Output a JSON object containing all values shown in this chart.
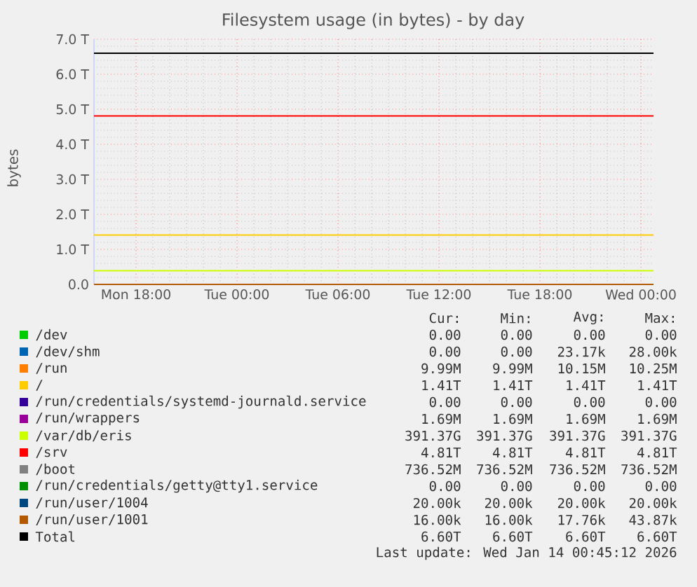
{
  "chart_data": {
    "type": "line",
    "title": "Filesystem usage (in bytes) - by day",
    "ylabel": "bytes",
    "x": [
      "2026-01-12T15:30",
      "2026-01-14T00:45"
    ],
    "xlim": [
      "2026-01-12T15:30",
      "2026-01-14T00:45"
    ],
    "ylim": [
      0,
      7
    ],
    "xticks": [
      {
        "value": "2026-01-12T18:00",
        "label": "Mon 18:00"
      },
      {
        "value": "2026-01-13T00:00",
        "label": "Tue 00:00"
      },
      {
        "value": "2026-01-13T06:00",
        "label": "Tue 06:00"
      },
      {
        "value": "2026-01-13T12:00",
        "label": "Tue 12:00"
      },
      {
        "value": "2026-01-13T18:00",
        "label": "Tue 18:00"
      },
      {
        "value": "2026-01-14T00:00",
        "label": "Wed 00:00"
      }
    ],
    "yticks": [
      {
        "value": 0,
        "label": "0.0"
      },
      {
        "value": 1,
        "label": "1.0 T"
      },
      {
        "value": 2,
        "label": "2.0 T"
      },
      {
        "value": 3,
        "label": "3.0 T"
      },
      {
        "value": 4,
        "label": "4.0 T"
      },
      {
        "value": 5,
        "label": "5.0 T"
      },
      {
        "value": 6,
        "label": "6.0 T"
      },
      {
        "value": 7,
        "label": "7.0 T"
      }
    ],
    "grid": true,
    "legend": "bottom",
    "series": [
      {
        "name": "/dev",
        "color": "#00cc00",
        "values": [
          null,
          null
        ]
      },
      {
        "name": "/dev/shm",
        "color": "#0066b3",
        "values": [
          null,
          null
        ]
      },
      {
        "name": "/run",
        "color": "#ff8000",
        "values": [
          null,
          null
        ]
      },
      {
        "name": "/",
        "color": "#ffcc00",
        "values": [
          1.41,
          1.41
        ]
      },
      {
        "name": "/run/credentials/systemd-journald.service",
        "color": "#330099",
        "values": [
          null,
          null
        ]
      },
      {
        "name": "/run/wrappers",
        "color": "#990099",
        "values": [
          null,
          null
        ]
      },
      {
        "name": "/var/db/eris",
        "color": "#ccff00",
        "values": [
          0.39,
          0.39
        ]
      },
      {
        "name": "/srv",
        "color": "#ff0000",
        "values": [
          4.81,
          4.81
        ]
      },
      {
        "name": "/boot",
        "color": "#808080",
        "values": [
          null,
          null
        ]
      },
      {
        "name": "/run/credentials/getty@tty1.service",
        "color": "#008f00",
        "values": [
          null,
          null
        ]
      },
      {
        "name": "/run/user/1004",
        "color": "#00487d",
        "values": [
          null,
          null
        ]
      },
      {
        "name": "/run/user/1001",
        "color": "#b35a00",
        "values": [
          0,
          0
        ]
      },
      {
        "name": "Total",
        "color": "#000000",
        "values": [
          6.6,
          6.6
        ]
      }
    ],
    "annotations": [
      "Cur:",
      "Min:",
      "Avg:",
      "Max:",
      "0.00",
      "0.00",
      "0.00",
      "0.00",
      "0.00",
      "0.00",
      "23.17k",
      "28.00k",
      "9.99M",
      "9.99M",
      "10.15M",
      "10.25M",
      "1.41T",
      "1.41T",
      "1.41T",
      "1.41T",
      "0.00",
      "0.00",
      "0.00",
      "0.00",
      "1.69M",
      "1.69M",
      "1.69M",
      "1.69M",
      "391.37G",
      "391.37G",
      "391.37G",
      "391.37G",
      "4.81T",
      "4.81T",
      "4.81T",
      "4.81T",
      "736.52M",
      "736.52M",
      "736.52M",
      "736.52M",
      "0.00",
      "0.00",
      "0.00",
      "0.00",
      "20.00k",
      "20.00k",
      "20.00k",
      "20.00k",
      "16.00k",
      "16.00k",
      "17.76k",
      "43.87k",
      "6.60T",
      "6.60T",
      "6.60T",
      "6.60T",
      "Last update: Wed Jan 14 00:45:12 2026"
    ]
  }
}
